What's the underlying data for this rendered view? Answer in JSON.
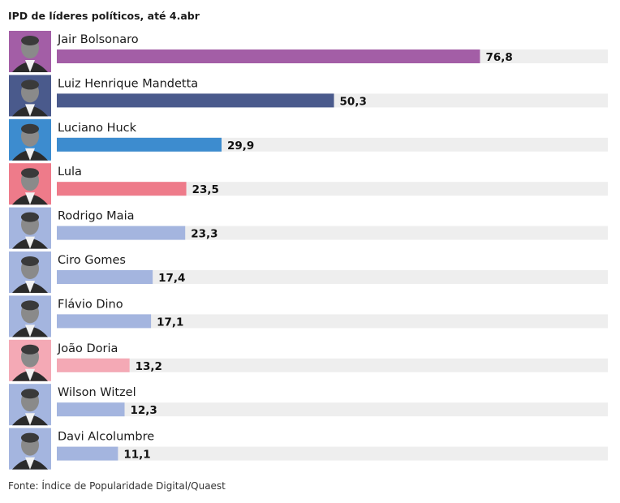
{
  "header": {
    "title": "IPD de líderes políticos, até 4.abr"
  },
  "footer": {
    "source": "Fonte: Índice de Popularidade Digital/Quaest"
  },
  "colors": {
    "track": "#eeeeee",
    "highlight_purple": "#a35ea6",
    "highlight_navy": "#4a5a8c",
    "highlight_blue": "#3d8ccf",
    "highlight_red": "#ee7b8a",
    "default_periwinkle": "#a4b5df",
    "highlight_pink": "#f4a9b5"
  },
  "chart_data": {
    "type": "bar",
    "orientation": "horizontal",
    "title": "IPD de líderes políticos, até 4.abr",
    "xlim": [
      0,
      100
    ],
    "grid": false,
    "categories": [
      "Jair Bolsonaro",
      "Luiz Henrique Mandetta",
      "Luciano Huck",
      "Lula",
      "Rodrigo Maia",
      "Ciro Gomes",
      "Flávio Dino",
      "João Doria",
      "Wilson Witzel",
      "Davi Alcolumbre"
    ],
    "values": [
      76.8,
      50.3,
      29.9,
      23.5,
      23.3,
      17.4,
      17.1,
      13.2,
      12.3,
      11.1
    ],
    "value_labels": [
      "76,8",
      "50,3",
      "29,9",
      "23,5",
      "23,3",
      "17,4",
      "17,1",
      "13,2",
      "12,3",
      "11,1"
    ],
    "bar_colors": [
      "#a35ea6",
      "#4a5a8c",
      "#3d8ccf",
      "#ee7b8a",
      "#a4b5df",
      "#a4b5df",
      "#a4b5df",
      "#f4a9b5",
      "#a4b5df",
      "#a4b5df"
    ],
    "photo_backgrounds": [
      "#a35ea6",
      "#4a5a8c",
      "#3d8ccf",
      "#ee7b8a",
      "#a4b5df",
      "#a4b5df",
      "#a4b5df",
      "#f4a9b5",
      "#a4b5df",
      "#a4b5df"
    ]
  }
}
